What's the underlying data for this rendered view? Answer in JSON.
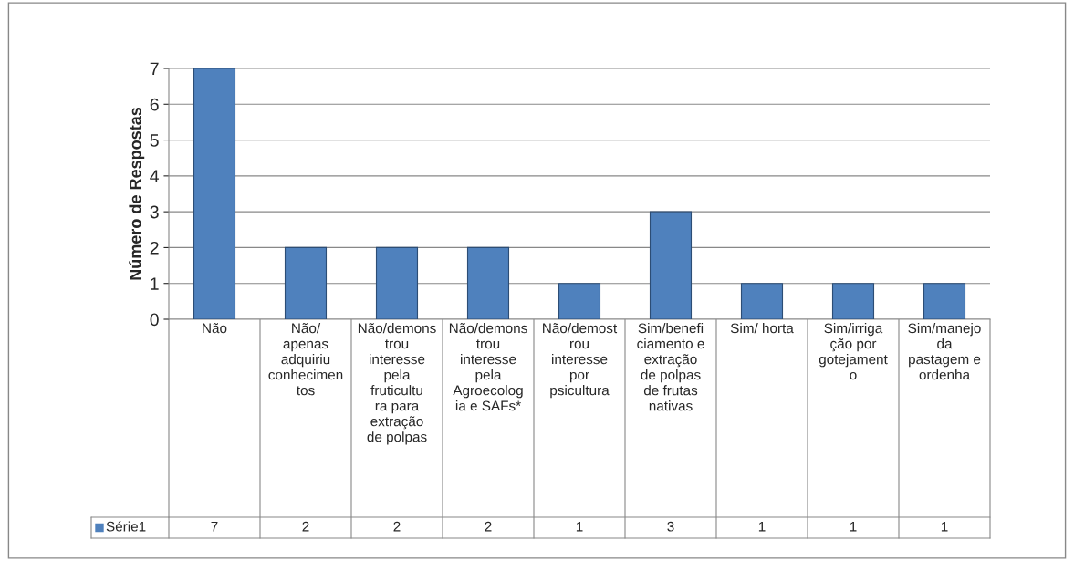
{
  "chart_data": {
    "type": "bar",
    "ylabel": "Número de Respostas",
    "categories": [
      "Não",
      "Não/ apenas adquiriu conhecimentos",
      "Não/demonstrou interesse pela fruticultura para extração de polpas",
      "Não/demonstrou interesse pela Agroecologia e SAFs*",
      "Não/demostrou interesse por psicultura",
      "Sim/beneficiamento e extração de polpas de frutas nativas",
      "Sim/ horta",
      "Sim/irrigação por gotejamento",
      "Sim/manejo da pastagem e ordenha"
    ],
    "series": [
      {
        "name": "Série1",
        "color": "#4f81bd",
        "values": [
          7,
          2,
          2,
          2,
          1,
          3,
          1,
          1,
          1
        ]
      }
    ],
    "ylim": [
      0,
      7
    ],
    "yticks": [
      0,
      1,
      2,
      3,
      4,
      5,
      6,
      7
    ],
    "grid": "y",
    "data_labels": true,
    "legend": "bottom left"
  }
}
